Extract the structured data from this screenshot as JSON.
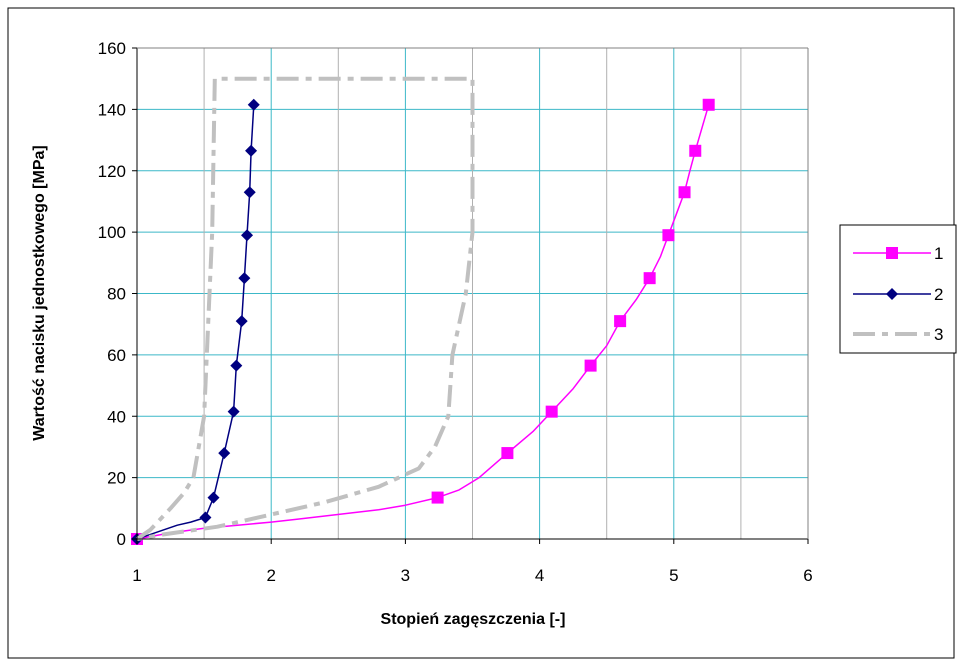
{
  "chart_data": {
    "type": "line",
    "title": "",
    "xlabel": "Stopień zagęszczenia  [-]",
    "ylabel": "Wartość nacisku jednostkowego  [MPa]",
    "xlim": [
      1,
      6
    ],
    "ylim": [
      0,
      160
    ],
    "x_ticks": [
      1,
      1.5,
      2,
      2.5,
      3,
      3.5,
      4,
      4.5,
      5,
      5.5,
      6
    ],
    "x_tick_labels": [
      "1",
      "",
      "2",
      "",
      "3",
      "",
      "4",
      "",
      "5",
      "",
      "6"
    ],
    "y_ticks": [
      0,
      20,
      40,
      60,
      80,
      100,
      120,
      140,
      160
    ],
    "y_tick_labels": [
      "0",
      "20",
      "40",
      "60",
      "80",
      "100",
      "120",
      "140",
      "160"
    ],
    "grid": true,
    "legend_position": "right",
    "series": [
      {
        "name": "1",
        "color": "#ff00ff",
        "marker": "square",
        "line_style": "solid",
        "points": [
          [
            1.0,
            0
          ],
          [
            1.25,
            2
          ],
          [
            1.5,
            3.5
          ],
          [
            1.75,
            4.5
          ],
          [
            2.0,
            5.5
          ],
          [
            2.2,
            6.5
          ],
          [
            2.4,
            7.5
          ],
          [
            2.6,
            8.5
          ],
          [
            2.8,
            9.5
          ],
          [
            3.0,
            11
          ],
          [
            3.24,
            13.5
          ],
          [
            3.4,
            16
          ],
          [
            3.55,
            20
          ],
          [
            3.76,
            28
          ],
          [
            3.95,
            35
          ],
          [
            4.09,
            41.5
          ],
          [
            4.25,
            49
          ],
          [
            4.38,
            56.5
          ],
          [
            4.5,
            63
          ],
          [
            4.6,
            71
          ],
          [
            4.72,
            78
          ],
          [
            4.82,
            85
          ],
          [
            4.9,
            92
          ],
          [
            4.96,
            99
          ],
          [
            5.02,
            106
          ],
          [
            5.08,
            113
          ],
          [
            5.12,
            120
          ],
          [
            5.16,
            126.5
          ],
          [
            5.21,
            134
          ],
          [
            5.26,
            141.5
          ]
        ],
        "marker_points": [
          [
            1.0,
            0
          ],
          [
            3.24,
            13.5
          ],
          [
            3.76,
            28
          ],
          [
            4.09,
            41.5
          ],
          [
            4.38,
            56.5
          ],
          [
            4.6,
            71
          ],
          [
            4.82,
            85
          ],
          [
            4.96,
            99
          ],
          [
            5.08,
            113
          ],
          [
            5.16,
            126.5
          ],
          [
            5.26,
            141.5
          ]
        ]
      },
      {
        "name": "2",
        "color": "#000080",
        "marker": "diamond",
        "line_style": "solid",
        "points": [
          [
            1.0,
            0
          ],
          [
            1.1,
            1.5
          ],
          [
            1.2,
            3
          ],
          [
            1.3,
            4.5
          ],
          [
            1.4,
            5.5
          ],
          [
            1.51,
            7
          ],
          [
            1.57,
            13.5
          ],
          [
            1.65,
            28
          ],
          [
            1.72,
            41.5
          ],
          [
            1.74,
            56.5
          ],
          [
            1.78,
            71
          ],
          [
            1.8,
            85
          ],
          [
            1.82,
            99
          ],
          [
            1.84,
            113
          ],
          [
            1.85,
            126.5
          ],
          [
            1.87,
            141.5
          ]
        ],
        "marker_points": [
          [
            1.0,
            0
          ],
          [
            1.51,
            7
          ],
          [
            1.57,
            13.5
          ],
          [
            1.65,
            28
          ],
          [
            1.72,
            41.5
          ],
          [
            1.74,
            56.5
          ],
          [
            1.78,
            71
          ],
          [
            1.8,
            85
          ],
          [
            1.82,
            99
          ],
          [
            1.84,
            113
          ],
          [
            1.85,
            126.5
          ],
          [
            1.87,
            141.5
          ]
        ]
      },
      {
        "name": "3",
        "color": "#c0c0c0",
        "marker": "none",
        "line_style": "dash-dot",
        "segments": [
          [
            [
              1.0,
              0
            ],
            [
              1.1,
              3
            ],
            [
              1.25,
              10
            ],
            [
              1.35,
              15
            ],
            [
              1.42,
              20
            ],
            [
              1.5,
              40
            ],
            [
              1.52,
              60
            ],
            [
              1.54,
              80
            ],
            [
              1.56,
              100
            ],
            [
              1.58,
              150
            ],
            [
              3.5,
              150
            ],
            [
              3.5,
              100
            ],
            [
              3.45,
              80
            ],
            [
              3.35,
              60
            ],
            [
              3.32,
              40
            ],
            [
              3.22,
              30
            ],
            [
              3.1,
              23
            ],
            [
              2.8,
              17
            ],
            [
              2.4,
              12
            ],
            [
              2.0,
              8
            ],
            [
              1.6,
              4
            ],
            [
              1.2,
              1.5
            ],
            [
              1.0,
              0
            ]
          ]
        ]
      }
    ]
  }
}
